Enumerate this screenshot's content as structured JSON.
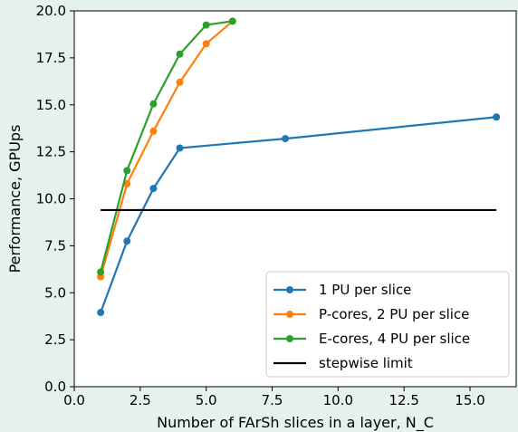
{
  "chart_data": {
    "type": "line",
    "title": "",
    "xlabel": "Number of FArSh slices in a layer, N_C",
    "ylabel": "Performance, GPUps",
    "xlim": [
      0.0,
      16.75
    ],
    "ylim": [
      0.0,
      20.0
    ],
    "xticks": [
      "0.0",
      "2.5",
      "5.0",
      "7.5",
      "10.0",
      "12.5",
      "15.0"
    ],
    "yticks": [
      "0.0",
      "2.5",
      "5.0",
      "7.5",
      "10.0",
      "12.5",
      "15.0",
      "17.5",
      "20.0"
    ],
    "grid": false,
    "legend_position": "lower-right",
    "series": [
      {
        "name": "1 PU per slice",
        "color": "#1f77b4",
        "marker": "circle",
        "x": [
          1,
          2,
          3,
          4,
          8,
          16
        ],
        "y": [
          3.95,
          7.75,
          10.55,
          12.7,
          13.2,
          14.35
        ]
      },
      {
        "name": "P-cores, 2 PU per slice",
        "color": "#ff7f0e",
        "marker": "circle",
        "x": [
          1,
          2,
          3,
          4,
          5,
          6
        ],
        "y": [
          5.85,
          10.8,
          13.6,
          16.2,
          18.25,
          19.45
        ]
      },
      {
        "name": "E-cores, 4 PU per slice",
        "color": "#2ca02c",
        "marker": "circle",
        "x": [
          1,
          2,
          3,
          4,
          5,
          6
        ],
        "y": [
          6.1,
          11.5,
          15.05,
          17.7,
          19.25,
          19.45
        ]
      },
      {
        "name": "stepwise limit",
        "color": "#000000",
        "marker": "none",
        "x": [
          1,
          16
        ],
        "y": [
          9.4,
          9.4
        ]
      }
    ]
  }
}
